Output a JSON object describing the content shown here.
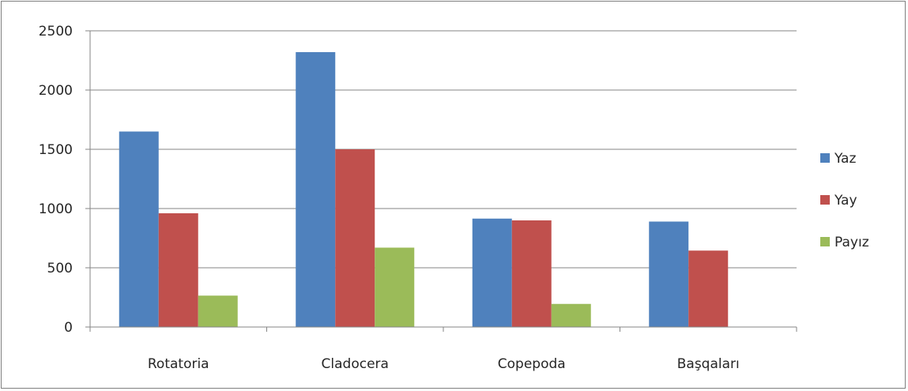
{
  "chart_data": {
    "type": "bar",
    "categories": [
      "Rotatoria",
      "Cladocera",
      "Copepoda",
      "Başqaları"
    ],
    "series": [
      {
        "name": "Yaz",
        "values": [
          1650,
          2320,
          915,
          890
        ],
        "color": "#4f81bd"
      },
      {
        "name": "Yay",
        "values": [
          960,
          1500,
          900,
          645
        ],
        "color": "#c0504d"
      },
      {
        "name": "Payız",
        "values": [
          265,
          670,
          195,
          0
        ],
        "color": "#9bbb59"
      }
    ],
    "yticks": [
      0,
      500,
      1000,
      1500,
      2000,
      2500
    ],
    "ylim": [
      0,
      2500
    ],
    "grid": true,
    "legend_position": "right"
  }
}
